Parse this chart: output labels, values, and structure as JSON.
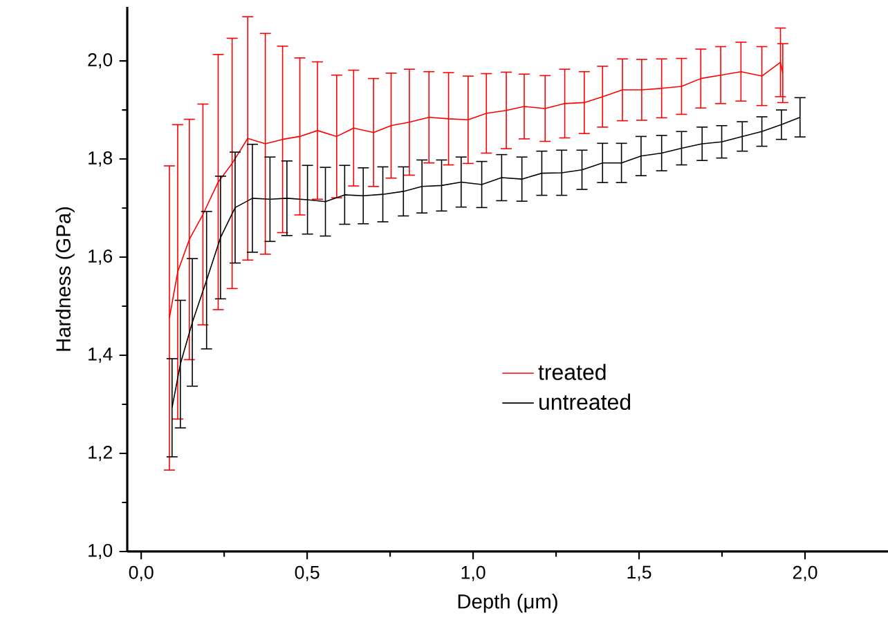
{
  "chart_data": {
    "type": "line",
    "xlabel": "Depth (μm)",
    "ylabel": "Hardness (GPa)",
    "xlim": [
      -0.042,
      2.25
    ],
    "ylim": [
      1.0,
      2.11
    ],
    "xticks": [
      {
        "value": 0,
        "label": "0,0"
      },
      {
        "value": 0.5,
        "label": "0,5"
      },
      {
        "value": 1.0,
        "label": "1,0"
      },
      {
        "value": 1.5,
        "label": "1,5"
      },
      {
        "value": 2.0,
        "label": "2,0"
      }
    ],
    "yticks": [
      {
        "value": 1.0,
        "label": "1,0"
      },
      {
        "value": 1.2,
        "label": "1,2"
      },
      {
        "value": 1.4,
        "label": "1,4"
      },
      {
        "value": 1.6,
        "label": "1,6"
      },
      {
        "value": 1.8,
        "label": "1,8"
      },
      {
        "value": 2.0,
        "label": "2,0"
      }
    ],
    "grid": false,
    "legend": "center",
    "marker": "none",
    "line_style": "solid",
    "series": [
      {
        "name": "treated",
        "color": "#ff0000",
        "x": [
          0.085,
          0.11,
          0.145,
          0.186,
          0.232,
          0.274,
          0.321,
          0.374,
          0.426,
          0.478,
          0.531,
          0.589,
          0.64,
          0.7,
          0.753,
          0.808,
          0.867,
          0.926,
          0.985,
          1.04,
          1.1,
          1.154,
          1.217,
          1.276,
          1.335,
          1.39,
          1.45,
          1.508,
          1.568,
          1.628,
          1.686,
          1.746,
          1.807,
          1.87,
          1.926,
          1.933
        ],
        "values": [
          1.476,
          1.57,
          1.636,
          1.687,
          1.753,
          1.791,
          1.842,
          1.831,
          1.84,
          1.846,
          1.858,
          1.846,
          1.863,
          1.854,
          1.868,
          1.875,
          1.885,
          1.882,
          1.88,
          1.893,
          1.899,
          1.907,
          1.903,
          1.913,
          1.915,
          1.927,
          1.941,
          1.941,
          1.944,
          1.948,
          1.964,
          1.971,
          1.978,
          1.969,
          1.997,
          1.975
        ],
        "errors": [
          0.31,
          0.3,
          0.245,
          0.225,
          0.26,
          0.255,
          0.248,
          0.225,
          0.19,
          0.16,
          0.14,
          0.125,
          0.118,
          0.11,
          0.107,
          0.108,
          0.093,
          0.094,
          0.089,
          0.081,
          0.078,
          0.066,
          0.067,
          0.07,
          0.063,
          0.062,
          0.063,
          0.062,
          0.06,
          0.057,
          0.06,
          0.058,
          0.06,
          0.06,
          0.07,
          0.06
        ]
      },
      {
        "name": "untreated",
        "color": "#000000",
        "x": [
          0.093,
          0.118,
          0.154,
          0.197,
          0.239,
          0.283,
          0.335,
          0.388,
          0.439,
          0.501,
          0.555,
          0.613,
          0.669,
          0.728,
          0.79,
          0.846,
          0.905,
          0.964,
          1.026,
          1.086,
          1.147,
          1.207,
          1.267,
          1.328,
          1.39,
          1.447,
          1.506,
          1.568,
          1.628,
          1.69,
          1.749,
          1.811,
          1.87,
          1.929,
          1.985
        ],
        "values": [
          1.293,
          1.382,
          1.467,
          1.553,
          1.64,
          1.701,
          1.72,
          1.718,
          1.72,
          1.717,
          1.713,
          1.727,
          1.725,
          1.728,
          1.734,
          1.744,
          1.746,
          1.753,
          1.748,
          1.762,
          1.759,
          1.771,
          1.772,
          1.778,
          1.792,
          1.792,
          1.806,
          1.812,
          1.822,
          1.831,
          1.835,
          1.846,
          1.856,
          1.87,
          1.885
        ],
        "errors": [
          0.1,
          0.13,
          0.13,
          0.14,
          0.125,
          0.113,
          0.11,
          0.086,
          0.076,
          0.07,
          0.07,
          0.06,
          0.057,
          0.056,
          0.05,
          0.054,
          0.052,
          0.051,
          0.047,
          0.047,
          0.045,
          0.045,
          0.046,
          0.04,
          0.04,
          0.04,
          0.04,
          0.036,
          0.034,
          0.034,
          0.033,
          0.03,
          0.03,
          0.03,
          0.04
        ]
      }
    ]
  }
}
